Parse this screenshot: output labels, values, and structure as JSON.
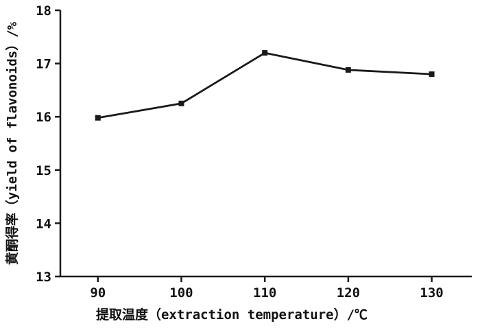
{
  "chart_data": {
    "type": "line",
    "title": "",
    "xlabel": "提取温度（extraction temperature）/℃",
    "ylabel": "黄酮得率（yield of flavonoids）/%",
    "x": [
      90,
      100,
      110,
      120,
      130
    ],
    "series": [
      {
        "name": "yield of flavonoids",
        "values": [
          15.98,
          16.25,
          17.2,
          16.88,
          16.8
        ]
      }
    ],
    "xticks": [
      90,
      100,
      110,
      120,
      130
    ],
    "yticks": [
      13,
      14,
      15,
      16,
      17,
      18
    ],
    "xlim": [
      85.5,
      134.8
    ],
    "ylim": [
      13,
      18
    ],
    "grid": false,
    "legend_position": "none",
    "marker": "square",
    "line_color": "#1a1a1a",
    "axis_color": "#1a1a1a",
    "background_color": "#ffffff"
  }
}
